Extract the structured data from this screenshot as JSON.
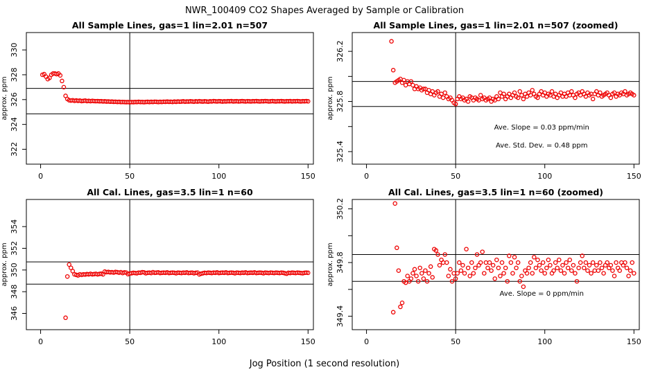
{
  "figure": {
    "title": "NWR_100409  CO2 Shapes Averaged by Sample or Calibration",
    "xlabel": "Jog Position (1 second resolution)"
  },
  "colors": {
    "points": "#ee0000",
    "lines": "#000000"
  },
  "chart_data": [
    {
      "type": "scatter",
      "title": "All Sample Lines, gas=1 lin=2.01 n=507",
      "ylabel": "approx. ppm",
      "xlim": [
        -8,
        153
      ],
      "ylim": [
        320.8,
        331.4
      ],
      "xticks": [
        0,
        50,
        100,
        150
      ],
      "yticks": [
        322,
        324,
        326,
        328,
        330
      ],
      "vline": 50,
      "hlines": [
        324.85,
        326.9
      ],
      "annotations": [],
      "x": [
        1,
        2,
        3,
        4,
        5,
        6,
        7,
        8,
        9,
        10,
        11,
        12,
        13,
        14,
        15,
        16,
        17,
        18,
        19,
        20,
        21,
        22,
        23,
        24,
        25,
        26,
        27,
        28,
        29,
        30,
        31,
        32,
        33,
        34,
        35,
        36,
        37,
        38,
        39,
        40,
        41,
        42,
        43,
        44,
        45,
        46,
        47,
        48,
        49,
        50,
        51,
        52,
        53,
        54,
        55,
        56,
        57,
        58,
        59,
        60,
        61,
        62,
        63,
        64,
        65,
        66,
        67,
        68,
        69,
        70,
        71,
        72,
        73,
        74,
        75,
        76,
        77,
        78,
        79,
        80,
        81,
        82,
        83,
        84,
        85,
        86,
        87,
        88,
        89,
        90,
        91,
        92,
        93,
        94,
        95,
        96,
        97,
        98,
        99,
        100,
        101,
        102,
        103,
        104,
        105,
        106,
        107,
        108,
        109,
        110,
        111,
        112,
        113,
        114,
        115,
        116,
        117,
        118,
        119,
        120,
        121,
        122,
        123,
        124,
        125,
        126,
        127,
        128,
        129,
        130,
        131,
        132,
        133,
        134,
        135,
        136,
        137,
        138,
        139,
        140,
        141,
        142,
        143,
        144,
        145,
        146,
        147,
        148,
        149,
        150
      ],
      "y": [
        328.0,
        328.05,
        327.85,
        327.65,
        327.75,
        328.0,
        328.1,
        328.1,
        328.05,
        328.1,
        327.95,
        327.5,
        327.0,
        326.3,
        326.05,
        325.95,
        325.92,
        325.95,
        325.9,
        325.93,
        325.9,
        325.92,
        325.88,
        325.9,
        325.92,
        325.88,
        325.9,
        325.87,
        325.9,
        325.88,
        325.87,
        325.88,
        325.86,
        325.87,
        325.85,
        325.86,
        325.84,
        325.85,
        325.83,
        325.84,
        325.82,
        325.83,
        325.81,
        325.82,
        325.8,
        325.81,
        325.8,
        325.79,
        325.8,
        325.78,
        325.8,
        325.79,
        325.81,
        325.8,
        325.82,
        325.8,
        325.81,
        325.79,
        325.81,
        325.82,
        325.8,
        325.82,
        325.81,
        325.83,
        325.82,
        325.8,
        325.82,
        325.81,
        325.83,
        325.82,
        325.84,
        325.82,
        325.83,
        325.81,
        325.84,
        325.82,
        325.85,
        325.83,
        325.84,
        325.86,
        325.83,
        325.85,
        325.84,
        325.86,
        325.85,
        325.83,
        325.86,
        325.84,
        325.87,
        325.85,
        325.84,
        325.86,
        325.85,
        325.83,
        325.86,
        325.85,
        325.88,
        325.86,
        325.85,
        325.87,
        325.86,
        325.84,
        325.86,
        325.85,
        325.87,
        325.86,
        325.88,
        325.85,
        325.86,
        325.87,
        325.85,
        325.86,
        325.88,
        325.86,
        325.85,
        325.87,
        325.86,
        325.85,
        325.87,
        325.86,
        325.88,
        325.86,
        325.85,
        325.87,
        325.86,
        325.88,
        325.87,
        325.85,
        325.86,
        325.88,
        325.86,
        325.85,
        325.87,
        325.86,
        325.88,
        325.86,
        325.85,
        325.87,
        325.86,
        325.88,
        325.85,
        325.87,
        325.86,
        325.88,
        325.86,
        325.85,
        325.87,
        325.86,
        325.88,
        325.86
      ]
    },
    {
      "type": "scatter",
      "title": "All Sample Lines, gas=1 lin=2.01 n=507 (zoomed)",
      "ylabel": "approx. ppm",
      "xlim": [
        -8,
        153
      ],
      "ylim": [
        325.3,
        326.35
      ],
      "xticks": [
        0,
        50,
        100,
        150
      ],
      "yticks": [
        325.4,
        325.8,
        326.2
      ],
      "hidden_yticks": [
        325.6,
        326.0
      ],
      "vline": 50,
      "hlines": [
        325.76,
        325.96
      ],
      "annotations": [
        "Ave. Slope =  0.03  ppm/min",
        "Ave. Std. Dev. =  0.48  ppm"
      ],
      "x": [
        14,
        15,
        16,
        17,
        18,
        19,
        20,
        21,
        22,
        23,
        24,
        25,
        26,
        27,
        28,
        29,
        30,
        31,
        32,
        33,
        34,
        35,
        36,
        37,
        38,
        39,
        40,
        41,
        42,
        43,
        44,
        45,
        46,
        47,
        48,
        49,
        50,
        51,
        52,
        53,
        54,
        55,
        56,
        57,
        58,
        59,
        60,
        61,
        62,
        63,
        64,
        65,
        66,
        67,
        68,
        69,
        70,
        71,
        72,
        73,
        74,
        75,
        76,
        77,
        78,
        79,
        80,
        81,
        82,
        83,
        84,
        85,
        86,
        87,
        88,
        89,
        90,
        91,
        92,
        93,
        94,
        95,
        96,
        97,
        98,
        99,
        100,
        101,
        102,
        103,
        104,
        105,
        106,
        107,
        108,
        109,
        110,
        111,
        112,
        113,
        114,
        115,
        116,
        117,
        118,
        119,
        120,
        121,
        122,
        123,
        124,
        125,
        126,
        127,
        128,
        129,
        130,
        131,
        132,
        133,
        134,
        135,
        136,
        137,
        138,
        139,
        140,
        141,
        142,
        143,
        144,
        145,
        146,
        147,
        148,
        149,
        150
      ],
      "y": [
        326.28,
        326.05,
        325.95,
        325.96,
        325.97,
        325.98,
        325.95,
        325.97,
        325.93,
        325.96,
        325.94,
        325.96,
        325.93,
        325.9,
        325.92,
        325.9,
        325.91,
        325.89,
        325.9,
        325.9,
        325.87,
        325.89,
        325.86,
        325.88,
        325.85,
        325.87,
        325.88,
        325.84,
        325.86,
        325.83,
        325.87,
        325.84,
        325.82,
        325.83,
        325.81,
        325.79,
        325.78,
        325.82,
        325.84,
        325.82,
        325.83,
        325.81,
        325.82,
        325.8,
        325.84,
        325.83,
        325.81,
        325.83,
        325.82,
        325.81,
        325.85,
        325.82,
        325.83,
        325.81,
        325.82,
        325.83,
        325.8,
        325.82,
        325.81,
        325.84,
        325.82,
        325.87,
        325.84,
        325.86,
        325.82,
        325.84,
        325.86,
        325.83,
        325.85,
        325.87,
        325.84,
        325.83,
        325.88,
        325.85,
        325.82,
        325.86,
        325.84,
        325.87,
        325.85,
        325.89,
        325.86,
        325.84,
        325.83,
        325.86,
        325.88,
        325.85,
        325.87,
        325.84,
        325.86,
        325.85,
        325.88,
        325.84,
        325.86,
        325.83,
        325.85,
        325.87,
        325.84,
        325.86,
        325.84,
        325.87,
        325.85,
        325.88,
        325.85,
        325.83,
        325.86,
        325.87,
        325.85,
        325.88,
        325.86,
        325.84,
        325.87,
        325.85,
        325.86,
        325.82,
        325.86,
        325.88,
        325.85,
        325.87,
        325.84,
        325.85,
        325.86,
        325.87,
        325.85,
        325.83,
        325.86,
        325.87,
        325.84,
        325.86,
        325.85,
        325.87,
        325.86,
        325.88,
        325.85,
        325.86,
        325.87,
        325.86,
        325.85
      ]
    },
    {
      "type": "scatter",
      "title": "All Cal. Lines, gas=3.5 lin=1 n=60",
      "ylabel": "approx. ppm",
      "xlim": [
        -8,
        153
      ],
      "ylim": [
        344.5,
        356.5
      ],
      "xticks": [
        0,
        50,
        100,
        150
      ],
      "yticks": [
        346,
        348,
        350,
        352,
        354
      ],
      "vline": 50,
      "hlines": [
        348.7,
        350.75
      ],
      "annotations": [],
      "x": [
        14,
        15,
        16,
        17,
        18,
        19,
        20,
        21,
        22,
        23,
        24,
        25,
        26,
        27,
        28,
        29,
        30,
        31,
        32,
        33,
        34,
        35,
        36,
        37,
        38,
        39,
        40,
        41,
        42,
        43,
        44,
        45,
        46,
        47,
        48,
        49,
        50,
        51,
        52,
        53,
        54,
        55,
        56,
        57,
        58,
        59,
        60,
        61,
        62,
        63,
        64,
        65,
        66,
        67,
        68,
        69,
        70,
        71,
        72,
        73,
        74,
        75,
        76,
        77,
        78,
        79,
        80,
        81,
        82,
        83,
        84,
        85,
        86,
        87,
        88,
        89,
        90,
        91,
        92,
        93,
        94,
        95,
        96,
        97,
        98,
        99,
        100,
        101,
        102,
        103,
        104,
        105,
        106,
        107,
        108,
        109,
        110,
        111,
        112,
        113,
        114,
        115,
        116,
        117,
        118,
        119,
        120,
        121,
        122,
        123,
        124,
        125,
        126,
        127,
        128,
        129,
        130,
        131,
        132,
        133,
        134,
        135,
        136,
        137,
        138,
        139,
        140,
        141,
        142,
        143,
        144,
        145,
        146,
        147,
        148,
        149,
        150
      ],
      "y": [
        345.6,
        349.4,
        350.5,
        350.2,
        349.9,
        349.6,
        349.55,
        349.5,
        349.6,
        349.55,
        349.6,
        349.58,
        349.62,
        349.6,
        349.65,
        349.6,
        349.62,
        349.65,
        349.6,
        349.64,
        349.66,
        349.6,
        349.85,
        349.8,
        349.82,
        349.78,
        349.8,
        349.76,
        349.82,
        349.8,
        349.75,
        349.8,
        349.72,
        349.78,
        349.76,
        349.62,
        349.68,
        349.7,
        349.74,
        349.72,
        349.7,
        349.76,
        349.74,
        349.8,
        349.78,
        349.7,
        349.74,
        349.76,
        349.72,
        349.8,
        349.74,
        349.76,
        349.78,
        349.72,
        349.74,
        349.76,
        349.74,
        349.78,
        349.72,
        349.74,
        349.76,
        349.74,
        349.7,
        349.76,
        349.74,
        349.72,
        349.76,
        349.74,
        349.78,
        349.72,
        349.74,
        349.76,
        349.7,
        349.74,
        349.76,
        349.6,
        349.66,
        349.7,
        349.74,
        349.72,
        349.76,
        349.74,
        349.72,
        349.76,
        349.74,
        349.78,
        349.72,
        349.74,
        349.76,
        349.74,
        349.78,
        349.72,
        349.74,
        349.76,
        349.74,
        349.7,
        349.76,
        349.74,
        349.72,
        349.76,
        349.74,
        349.78,
        349.72,
        349.74,
        349.76,
        349.74,
        349.78,
        349.72,
        349.74,
        349.76,
        349.74,
        349.7,
        349.76,
        349.74,
        349.72,
        349.76,
        349.74,
        349.72,
        349.76,
        349.74,
        349.72,
        349.76,
        349.74,
        349.7,
        349.66,
        349.74,
        349.72,
        349.76,
        349.74,
        349.72,
        349.76,
        349.74,
        349.72,
        349.7,
        349.74,
        349.76,
        349.74
      ]
    },
    {
      "type": "scatter",
      "title": "All Cal. Lines, gas=3.5 lin=1 n=60 (zoomed)",
      "ylabel": "approx. ppm",
      "xlim": [
        -8,
        153
      ],
      "ylim": [
        349.3,
        350.27
      ],
      "xticks": [
        0,
        50,
        100,
        150
      ],
      "yticks": [
        349.4,
        349.8,
        350.2
      ],
      "hidden_yticks": [
        349.6,
        350.0
      ],
      "vline": 50,
      "hlines": [
        349.66,
        349.86
      ],
      "annotations": [
        "Ave. Slope =  0  ppm/min"
      ],
      "x": [
        15,
        16,
        17,
        18,
        19,
        20,
        21,
        22,
        23,
        24,
        25,
        26,
        27,
        28,
        29,
        30,
        31,
        32,
        33,
        34,
        35,
        36,
        37,
        38,
        39,
        40,
        41,
        42,
        43,
        44,
        45,
        46,
        47,
        48,
        49,
        50,
        51,
        52,
        53,
        54,
        55,
        56,
        57,
        58,
        59,
        60,
        61,
        62,
        63,
        64,
        65,
        66,
        67,
        68,
        69,
        70,
        71,
        72,
        73,
        74,
        75,
        76,
        77,
        78,
        79,
        80,
        81,
        82,
        83,
        84,
        85,
        86,
        87,
        88,
        89,
        90,
        91,
        92,
        93,
        94,
        95,
        96,
        97,
        98,
        99,
        100,
        101,
        102,
        103,
        104,
        105,
        106,
        107,
        108,
        109,
        110,
        111,
        112,
        113,
        114,
        115,
        116,
        117,
        118,
        119,
        120,
        121,
        122,
        123,
        124,
        125,
        126,
        127,
        128,
        129,
        130,
        131,
        132,
        133,
        134,
        135,
        136,
        137,
        138,
        139,
        140,
        141,
        142,
        143,
        144,
        145,
        146,
        147,
        148,
        149,
        150
      ],
      "y": [
        349.43,
        350.24,
        349.91,
        349.74,
        349.47,
        349.5,
        349.66,
        349.65,
        349.7,
        349.66,
        349.68,
        349.72,
        349.75,
        349.7,
        349.66,
        349.76,
        349.72,
        349.68,
        349.74,
        349.66,
        349.72,
        349.77,
        349.69,
        349.9,
        349.89,
        349.86,
        349.78,
        349.82,
        349.8,
        349.86,
        349.8,
        349.7,
        349.75,
        349.66,
        349.72,
        349.68,
        349.72,
        349.8,
        349.74,
        349.78,
        349.72,
        349.9,
        349.76,
        349.7,
        349.8,
        349.72,
        349.76,
        349.86,
        349.78,
        349.8,
        349.88,
        349.72,
        349.8,
        349.76,
        349.8,
        349.74,
        349.78,
        349.68,
        349.82,
        349.76,
        349.7,
        349.8,
        349.72,
        349.76,
        349.66,
        349.85,
        349.8,
        349.72,
        349.84,
        349.76,
        349.8,
        349.66,
        349.7,
        349.62,
        349.74,
        349.72,
        349.76,
        349.8,
        349.72,
        349.84,
        349.76,
        349.82,
        349.78,
        349.74,
        349.8,
        349.72,
        349.76,
        349.82,
        349.78,
        349.72,
        349.74,
        349.8,
        349.76,
        349.82,
        349.74,
        349.78,
        349.72,
        349.8,
        349.76,
        349.82,
        349.74,
        349.78,
        349.72,
        349.66,
        349.76,
        349.8,
        349.85,
        349.76,
        349.8,
        349.74,
        349.78,
        349.72,
        349.8,
        349.74,
        349.78,
        349.74,
        349.8,
        349.76,
        349.72,
        349.78,
        349.8,
        349.76,
        349.78,
        349.74,
        349.7,
        349.8,
        349.76,
        349.74,
        349.8,
        349.78,
        349.8,
        349.76,
        349.7,
        349.74,
        349.8,
        349.72
      ]
    }
  ]
}
